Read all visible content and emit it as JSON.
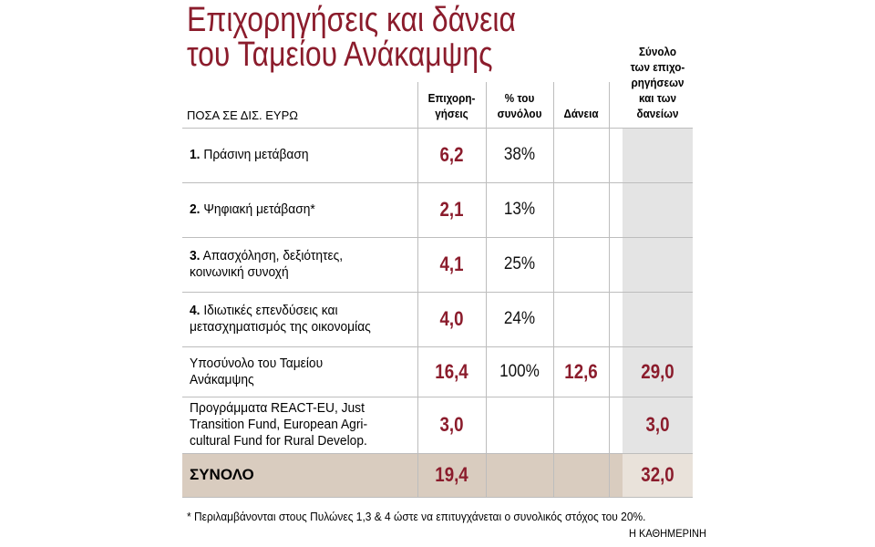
{
  "title": [
    "Επιχορηγήσεις και δάνεια",
    "του Ταμείου Ανάκαμψης"
  ],
  "unit_label": "ΠΟΣΑ ΣΕ ΔΙΣ. ΕΥΡΩ",
  "columns": [
    [
      "Επιχορη-",
      "γήσεις"
    ],
    [
      "% του",
      "συνόλου"
    ],
    [
      "Δάνεια"
    ],
    [
      "Σύνολο",
      "των επιχο-",
      "ρηγήσεων",
      "και των",
      "δανείων"
    ]
  ],
  "rows": [
    {
      "num": "1.",
      "label": [
        "Πράσινη μετάβαση"
      ],
      "cells": [
        "6,2",
        "38%",
        null,
        null
      ]
    },
    {
      "num": "2.",
      "label": [
        "Ψηφιακή μετάβαση*"
      ],
      "cells": [
        "2,1",
        "13%",
        null,
        null
      ]
    },
    {
      "num": "3.",
      "label": [
        "Απασχόληση, δεξιότητες,",
        "κοινωνική συνοχή"
      ],
      "cells": [
        "4,1",
        "25%",
        null,
        null
      ]
    },
    {
      "num": "4.",
      "label": [
        "Ιδιωτικές επενδύσεις και",
        "μετασχηματισμός της οικονομίας"
      ],
      "cells": [
        "4,0",
        "24%",
        null,
        null
      ]
    },
    {
      "num": null,
      "label": [
        "Υποσύνολο του Ταμείου",
        "Ανάκαμψης"
      ],
      "cells": [
        "16,4",
        "100%",
        "12,6",
        "29,0"
      ]
    },
    {
      "num": null,
      "label": [
        "Προγράμματα REACT-EU, Just",
        "Transition Fund, European Agri-",
        "cultural Fund for Rural Develop."
      ],
      "cells": [
        "3,0",
        null,
        null,
        "3,0"
      ]
    }
  ],
  "total": {
    "label": "ΣΥΝΟΛΟ",
    "cells": [
      "19,4",
      null,
      null,
      "32,0"
    ]
  },
  "footnote": "* Περιλαμβάνονται στους Πυλώνες 1,3 & 4 ώστε να επιτυγχάνεται ο συνολικός στόχος του 20%.",
  "source": "Η ΚΑΘΗΜΕΡΙΝΗ"
}
